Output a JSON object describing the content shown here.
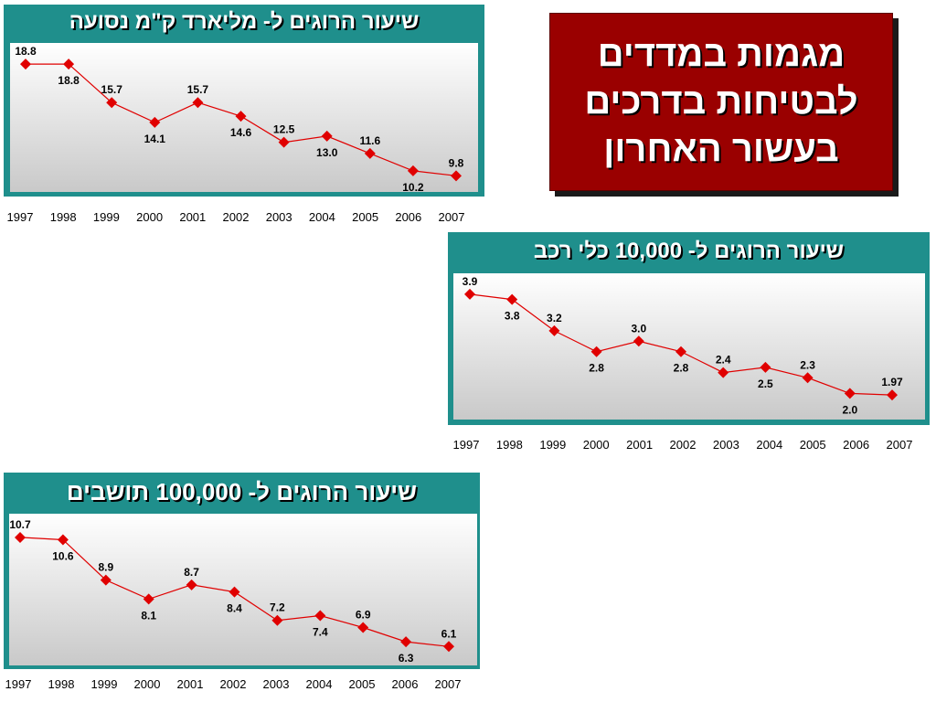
{
  "banner": {
    "lines": [
      "מגמות במדדים",
      "לבטיחות בדרכים",
      "בעשור האחרון"
    ]
  },
  "colors": {
    "panel": "#1f8f8c",
    "line": "#e00000",
    "marker": "#e00000",
    "banner": "#9a0000",
    "title_text": "#ffffff"
  },
  "years": [
    "1997",
    "1998",
    "1999",
    "2000",
    "2001",
    "2002",
    "2003",
    "2004",
    "2005",
    "2006",
    "2007"
  ],
  "chart_data": [
    {
      "type": "line",
      "title": "שיעור הרוגים ל- מליארד ק\"מ נסועה",
      "categories": [
        "1997",
        "1998",
        "1999",
        "2000",
        "2001",
        "2002",
        "2003",
        "2004",
        "2005",
        "2006",
        "2007"
      ],
      "values": [
        18.8,
        18.8,
        15.7,
        14.1,
        15.7,
        14.6,
        12.5,
        13.0,
        11.6,
        10.2,
        9.8
      ],
      "labels": [
        "18.8",
        "18.8",
        "15.7",
        "14.1",
        "15.7",
        "14.6",
        "12.5",
        "13.0",
        "11.6",
        "10.2",
        "9.8"
      ],
      "label_pos": [
        "above",
        "below",
        "above",
        "below",
        "above",
        "below",
        "above",
        "below",
        "above",
        "below",
        "above"
      ],
      "ylim": [
        8.5,
        20.5
      ]
    },
    {
      "type": "line",
      "title": "שיעור הרוגים ל- 10,000 כלי רכב",
      "categories": [
        "1997",
        "1998",
        "1999",
        "2000",
        "2001",
        "2002",
        "2003",
        "2004",
        "2005",
        "2006",
        "2007"
      ],
      "values": [
        3.9,
        3.8,
        3.2,
        2.8,
        3.0,
        2.8,
        2.4,
        2.5,
        2.3,
        2.0,
        1.97
      ],
      "labels": [
        "3.9",
        "3.8",
        "3.2",
        "2.8",
        "3.0",
        "2.8",
        "2.4",
        "2.5",
        "2.3",
        "2.0",
        "1.97"
      ],
      "label_pos": [
        "above",
        "below",
        "above",
        "below",
        "above",
        "below",
        "above",
        "below",
        "above",
        "below",
        "above"
      ],
      "ylim": [
        1.5,
        4.3
      ]
    },
    {
      "type": "line",
      "title": "שיעור הרוגים ל- 100,000 תושבים",
      "categories": [
        "1997",
        "1998",
        "1999",
        "2000",
        "2001",
        "2002",
        "2003",
        "2004",
        "2005",
        "2006",
        "2007"
      ],
      "values": [
        10.7,
        10.6,
        8.9,
        8.1,
        8.7,
        8.4,
        7.2,
        7.4,
        6.9,
        6.3,
        6.1
      ],
      "labels": [
        "10.7",
        "10.6",
        "8.9",
        "8.1",
        "8.7",
        "8.4",
        "7.2",
        "7.4",
        "6.9",
        "6.3",
        "6.1"
      ],
      "label_pos": [
        "above",
        "below",
        "above",
        "below",
        "above",
        "below",
        "above",
        "below",
        "above",
        "below",
        "above"
      ],
      "ylim": [
        5.3,
        11.7
      ]
    }
  ]
}
